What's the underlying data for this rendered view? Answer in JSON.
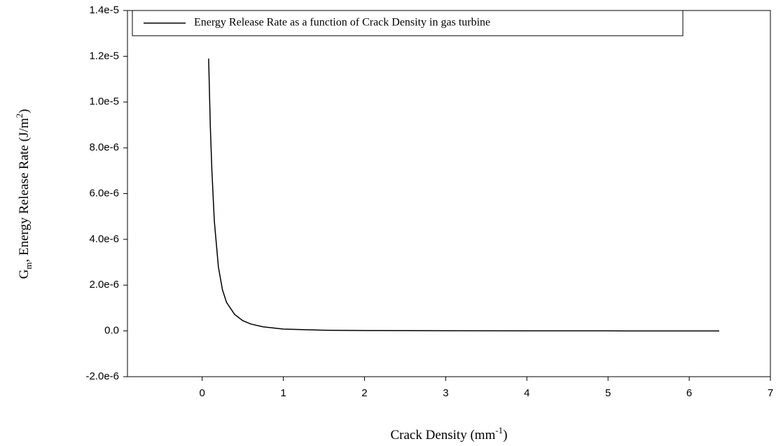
{
  "chart_data": {
    "type": "line",
    "xlabel": [
      "Crack Density (mm",
      "-1",
      ")"
    ],
    "ylabel": [
      "G",
      "m",
      ", Energy Release Rate (J/m",
      "2",
      ")"
    ],
    "x": [
      0.08,
      0.1,
      0.12,
      0.15,
      0.2,
      0.25,
      0.3,
      0.4,
      0.5,
      0.6,
      0.75,
      1,
      1.5,
      2,
      3,
      4,
      5,
      6.37
    ],
    "series": [
      {
        "name": "Energy Release Rate as a function of Crack Density in gas turbine",
        "color": "#000000",
        "values": [
          1.19e-05,
          9e-06,
          7e-06,
          4.8e-06,
          2.8e-06,
          1.8e-06,
          1.25e-06,
          7.2e-07,
          4.5e-07,
          3e-07,
          1.8e-07,
          8e-08,
          3e-08,
          1.5e-08,
          6e-09,
          3e-09,
          2e-09,
          1e-09
        ]
      }
    ],
    "xlim": [
      -0.92,
      7
    ],
    "ylim": [
      -2e-06,
      1.4e-05
    ],
    "xticks": [
      0,
      1,
      2,
      3,
      4,
      5,
      6,
      7
    ],
    "yticks": [
      {
        "value": -2e-06,
        "label": "-2.0e-6"
      },
      {
        "value": 0,
        "label": "0.0"
      },
      {
        "value": 2e-06,
        "label": "2.0e-6"
      },
      {
        "value": 4e-06,
        "label": "4.0e-6"
      },
      {
        "value": 6e-06,
        "label": "6.0e-6"
      },
      {
        "value": 8e-06,
        "label": "8.0e-6"
      },
      {
        "value": 1e-05,
        "label": "1.0e-5"
      },
      {
        "value": 1.2e-05,
        "label": "1.2e-5"
      },
      {
        "value": 1.4e-05,
        "label": "1.4e-5"
      }
    ],
    "legend": "upper left"
  }
}
